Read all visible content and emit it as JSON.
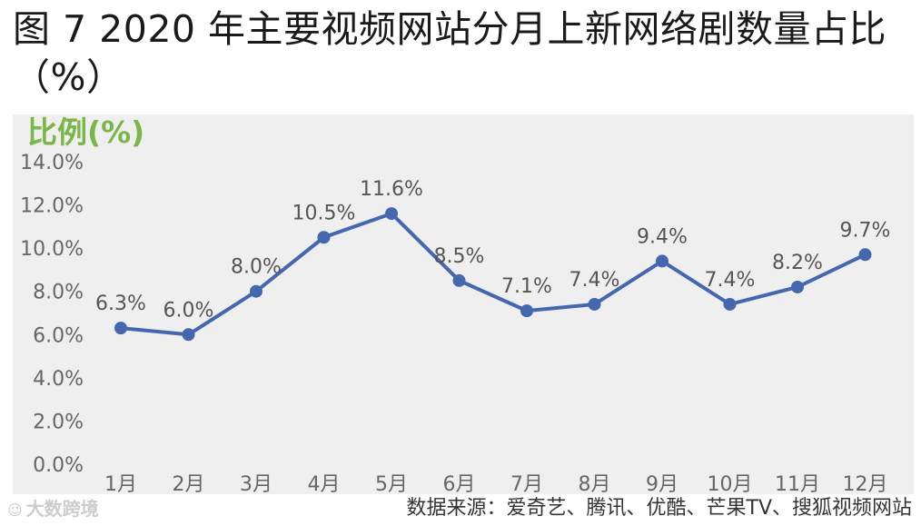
{
  "title": "图 7 2020 年主要视频网站分月上新网络剧数量占比（%）",
  "chart_data": {
    "type": "line",
    "ylabel": "比例(%)",
    "xlabel": "",
    "categories": [
      "1月",
      "2月",
      "3月",
      "4月",
      "5月",
      "6月",
      "7月",
      "8月",
      "9月",
      "10月",
      "11月",
      "12月"
    ],
    "values": [
      6.3,
      6.0,
      8.0,
      10.5,
      11.6,
      8.5,
      7.1,
      7.4,
      9.4,
      7.4,
      8.2,
      9.7
    ],
    "data_labels": [
      "6.3%",
      "6.0%",
      "8.0%",
      "10.5%",
      "11.6%",
      "8.5%",
      "7.1%",
      "7.4%",
      "9.4%",
      "7.4%",
      "8.2%",
      "9.7%"
    ],
    "ylim": [
      0,
      14
    ],
    "yticks": [
      0,
      2,
      4,
      6,
      8,
      10,
      12,
      14
    ],
    "ytick_labels": [
      "0.0%",
      "2.0%",
      "4.0%",
      "6.0%",
      "8.0%",
      "10.0%",
      "12.0%",
      "14.0%"
    ],
    "grid": false,
    "line_color": "#4467b0",
    "ylabel_color": "#7ab648"
  },
  "footer": {
    "source": "数据来源：爱奇艺、腾讯、优酷、芒果TV、搜狐视频网站",
    "watermark": "大数跨境"
  }
}
